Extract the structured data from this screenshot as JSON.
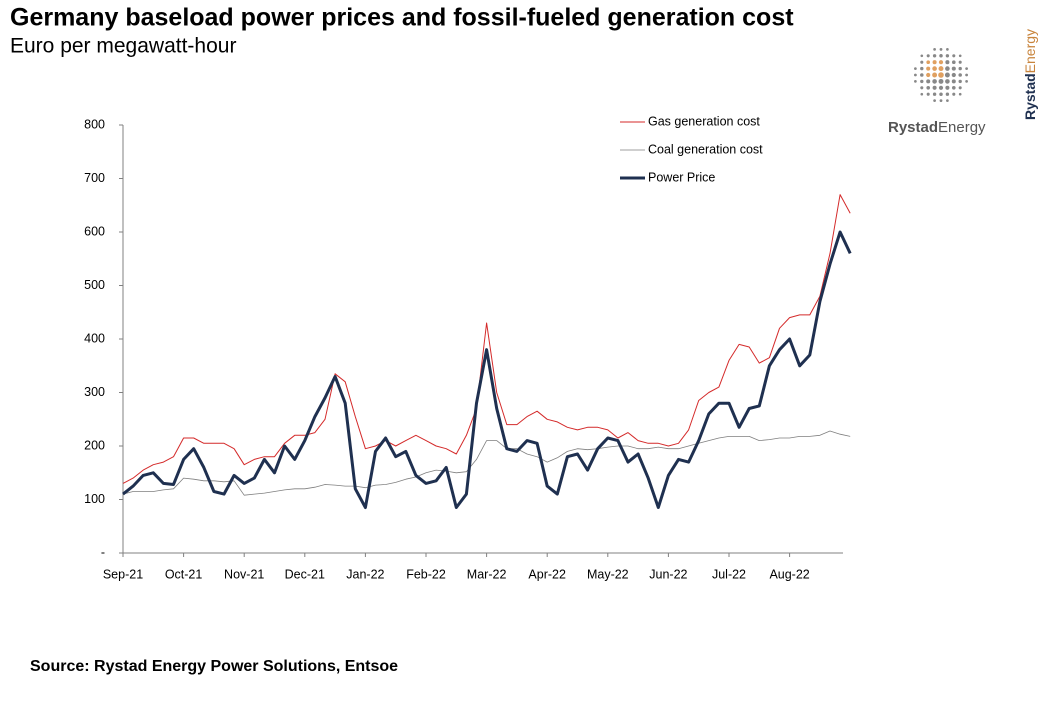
{
  "chart_data": {
    "type": "line",
    "title": "Germany baseload power prices and fossil-fueled generation cost",
    "subtitle": "Euro per megawatt-hour",
    "source": "Source: Rystad Energy Power Solutions,  Entsoe",
    "brand": {
      "name": "Rystad",
      "suffix": "Energy"
    },
    "categories": [
      "Sep-21",
      null,
      null,
      null,
      null,
      null,
      "Oct-21",
      null,
      null,
      null,
      null,
      null,
      "Nov-21",
      null,
      null,
      null,
      null,
      null,
      "Dec-21",
      null,
      null,
      null,
      null,
      null,
      "Jan-22",
      null,
      null,
      null,
      null,
      null,
      "Feb-22",
      null,
      null,
      null,
      null,
      null,
      "Mar-22",
      null,
      null,
      null,
      null,
      null,
      "Apr-22",
      null,
      null,
      null,
      null,
      null,
      "May-22",
      null,
      null,
      null,
      null,
      null,
      "Jun-22",
      null,
      null,
      null,
      null,
      null,
      "Jul-22",
      null,
      null,
      null,
      null,
      null,
      "Aug-22",
      null,
      null,
      null,
      null,
      null,
      null
    ],
    "series": [
      {
        "name": "Gas generation cost",
        "color": "#d42a2a",
        "width": 1,
        "values": [
          130,
          140,
          155,
          165,
          170,
          180,
          215,
          215,
          205,
          205,
          205,
          195,
          165,
          175,
          180,
          180,
          205,
          220,
          220,
          225,
          250,
          335,
          320,
          255,
          195,
          200,
          210,
          200,
          210,
          220,
          210,
          200,
          195,
          185,
          220,
          270,
          430,
          300,
          240,
          240,
          255,
          265,
          250,
          245,
          235,
          230,
          235,
          235,
          230,
          215,
          225,
          210,
          205,
          205,
          200,
          205,
          230,
          285,
          300,
          310,
          360,
          390,
          385,
          355,
          365,
          420,
          440,
          445,
          445,
          480,
          560,
          670,
          635
        ]
      },
      {
        "name": "Coal generation cost",
        "color": "#7f7f7f",
        "width": 0.8,
        "values": [
          110,
          115,
          115,
          115,
          118,
          120,
          140,
          138,
          135,
          135,
          133,
          135,
          108,
          110,
          112,
          115,
          118,
          120,
          120,
          123,
          128,
          127,
          125,
          125,
          122,
          127,
          128,
          132,
          138,
          142,
          150,
          155,
          153,
          150,
          152,
          175,
          210,
          210,
          195,
          195,
          185,
          180,
          170,
          178,
          190,
          195,
          193,
          195,
          198,
          200,
          200,
          195,
          195,
          198,
          195,
          195,
          200,
          205,
          210,
          215,
          218,
          218,
          218,
          210,
          212,
          215,
          215,
          218,
          218,
          220,
          228,
          222,
          218
        ]
      },
      {
        "name": "Power Price",
        "color": "#1f3050",
        "width": 3,
        "values": [
          110,
          125,
          145,
          150,
          130,
          128,
          175,
          195,
          160,
          115,
          110,
          145,
          130,
          140,
          175,
          150,
          200,
          175,
          210,
          255,
          290,
          330,
          280,
          120,
          85,
          190,
          215,
          180,
          190,
          145,
          130,
          135,
          160,
          85,
          110,
          280,
          380,
          270,
          195,
          190,
          210,
          205,
          125,
          110,
          180,
          185,
          155,
          195,
          215,
          210,
          170,
          185,
          140,
          85,
          145,
          175,
          170,
          210,
          260,
          280,
          280,
          235,
          270,
          275,
          350,
          380,
          400,
          350,
          370,
          470,
          540,
          600,
          560
        ]
      }
    ],
    "ylim": [
      0,
      800
    ],
    "yticks": [
      {
        "value": 0,
        "label": "-"
      },
      100,
      200,
      300,
      400,
      500,
      600,
      700,
      800
    ],
    "legend": "top-right"
  }
}
